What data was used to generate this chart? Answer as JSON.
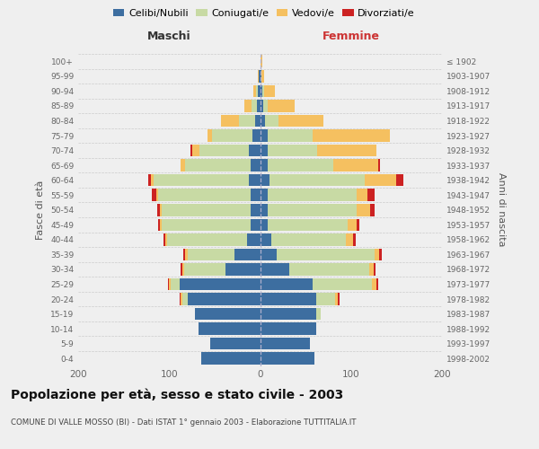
{
  "age_groups": [
    "0-4",
    "5-9",
    "10-14",
    "15-19",
    "20-24",
    "25-29",
    "30-34",
    "35-39",
    "40-44",
    "45-49",
    "50-54",
    "55-59",
    "60-64",
    "65-69",
    "70-74",
    "75-79",
    "80-84",
    "85-89",
    "90-94",
    "95-99",
    "100+"
  ],
  "birth_years": [
    "1998-2002",
    "1993-1997",
    "1988-1992",
    "1983-1987",
    "1978-1982",
    "1973-1977",
    "1968-1972",
    "1963-1967",
    "1958-1962",
    "1953-1957",
    "1948-1952",
    "1943-1947",
    "1938-1942",
    "1933-1937",
    "1928-1932",
    "1923-1927",
    "1918-1922",
    "1913-1917",
    "1908-1912",
    "1903-1907",
    "≤ 1902"
  ],
  "male_celibe": [
    65,
    55,
    68,
    72,
    80,
    88,
    38,
    28,
    14,
    10,
    10,
    10,
    12,
    10,
    12,
    8,
    5,
    3,
    2,
    1,
    0
  ],
  "male_coniugato": [
    0,
    0,
    0,
    0,
    5,
    10,
    45,
    52,
    88,
    98,
    98,
    102,
    105,
    72,
    55,
    45,
    18,
    6,
    2,
    0,
    0
  ],
  "male_vedovo": [
    0,
    0,
    0,
    0,
    2,
    2,
    2,
    2,
    2,
    2,
    2,
    2,
    3,
    5,
    8,
    5,
    20,
    8,
    3,
    1,
    0
  ],
  "male_divorziato": [
    0,
    0,
    0,
    0,
    1,
    1,
    2,
    2,
    2,
    2,
    3,
    5,
    3,
    0,
    2,
    0,
    0,
    0,
    0,
    0,
    0
  ],
  "female_celibe": [
    60,
    55,
    62,
    62,
    62,
    58,
    32,
    18,
    12,
    8,
    8,
    8,
    10,
    8,
    8,
    8,
    5,
    3,
    2,
    1,
    0
  ],
  "female_coniugato": [
    0,
    0,
    0,
    5,
    20,
    65,
    88,
    108,
    82,
    88,
    98,
    98,
    105,
    72,
    55,
    50,
    15,
    5,
    2,
    0,
    0
  ],
  "female_vedovo": [
    0,
    0,
    0,
    0,
    3,
    5,
    5,
    5,
    8,
    10,
    15,
    12,
    35,
    50,
    65,
    85,
    50,
    30,
    12,
    3,
    2
  ],
  "female_divorziato": [
    0,
    0,
    0,
    0,
    2,
    2,
    2,
    3,
    3,
    3,
    5,
    8,
    8,
    2,
    0,
    0,
    0,
    0,
    0,
    0,
    0
  ],
  "color_celibe": "#3d6ea0",
  "color_coniugato": "#c8daa4",
  "color_vedovo": "#f5c060",
  "color_divorziato": "#cc2222",
  "bg_color": "#efefef",
  "xlim": 200,
  "title": "Popolazione per età, sesso e stato civile - 2003",
  "subtitle": "COMUNE DI VALLE MOSSO (BI) - Dati ISTAT 1° gennaio 2003 - Elaborazione TUTTITALIA.IT",
  "ylabel_left": "Fasce di età",
  "ylabel_right": "Anni di nascita",
  "header_left": "Maschi",
  "header_right": "Femmine"
}
